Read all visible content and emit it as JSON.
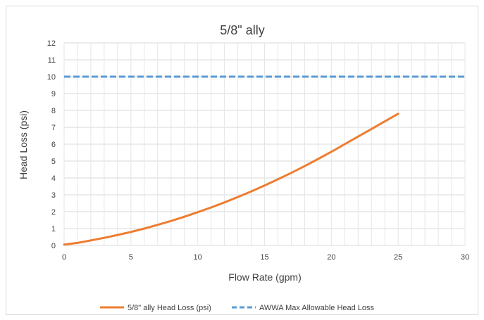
{
  "chart_data": {
    "type": "line",
    "title": "5/8\" ally",
    "xlabel": "Flow Rate (gpm)",
    "ylabel": "Head Loss (psi)",
    "xlim": [
      0,
      30
    ],
    "ylim": [
      0,
      12
    ],
    "x_ticks": [
      0,
      5,
      10,
      15,
      20,
      25,
      30
    ],
    "y_ticks": [
      0,
      1,
      2,
      3,
      4,
      5,
      6,
      7,
      8,
      9,
      10,
      11,
      12
    ],
    "grid": true,
    "legend_position": "bottom",
    "series": [
      {
        "name": "5/8\" ally Head Loss (psi)",
        "color": "#ed7d31",
        "style": "solid",
        "x": [
          0,
          1,
          2,
          3,
          4,
          5,
          6,
          7,
          8,
          9,
          10,
          11,
          12,
          13,
          14,
          15,
          16,
          17,
          18,
          19,
          20,
          21,
          22,
          23,
          24,
          25
        ],
        "y": [
          0.05,
          0.15,
          0.3,
          0.45,
          0.62,
          0.8,
          1.0,
          1.22,
          1.45,
          1.7,
          1.97,
          2.25,
          2.55,
          2.87,
          3.2,
          3.55,
          3.92,
          4.3,
          4.7,
          5.12,
          5.55,
          6.0,
          6.45,
          6.9,
          7.35,
          7.8
        ]
      },
      {
        "name": "AWWA Max Allowable Head Loss",
        "color": "#5b9bd5",
        "style": "dashed",
        "x": [
          0,
          30
        ],
        "y": [
          10,
          10
        ]
      }
    ]
  }
}
